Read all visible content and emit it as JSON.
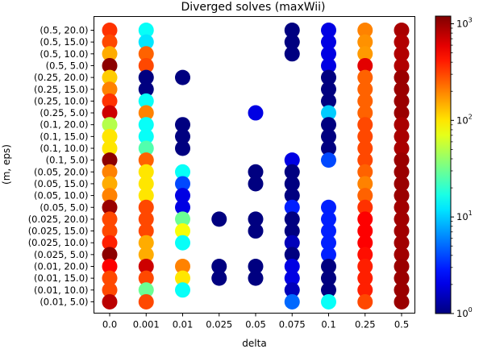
{
  "chart_data": {
    "type": "scatter",
    "title": "Diverged solves (maxWii)",
    "xlabel": "delta",
    "ylabel": "(m, eps)",
    "x_categories": [
      "0.0",
      "0.001",
      "0.01",
      "0.025",
      "0.05",
      "0.075",
      "0.1",
      "0.25",
      "0.5"
    ],
    "y_categories": [
      "(0.5, 20.0)",
      "(0.5, 15.0)",
      "(0.5, 10.0)",
      "(0.5, 5.0)",
      "(0.25, 20.0)",
      "(0.25, 15.0)",
      "(0.25, 10.0)",
      "(0.25, 5.0)",
      "(0.1, 20.0)",
      "(0.1, 15.0)",
      "(0.1, 10.0)",
      "(0.1, 5.0)",
      "(0.05, 20.0)",
      "(0.05, 15.0)",
      "(0.05, 10.0)",
      "(0.05, 5.0)",
      "(0.025, 20.0)",
      "(0.025, 15.0)",
      "(0.025, 10.0)",
      "(0.025, 5.0)",
      "(0.01, 20.0)",
      "(0.01, 15.0)",
      "(0.01, 10.0)",
      "(0.01, 5.0)"
    ],
    "color_scale": "log",
    "colormap": "jet",
    "color_range": [
      1,
      1200
    ],
    "colorbar_ticks": [
      {
        "value": 1,
        "base": "10",
        "exp": "0"
      },
      {
        "value": 10,
        "base": "10",
        "exp": "1"
      },
      {
        "value": 100,
        "base": "10",
        "exp": "2"
      },
      {
        "value": 1000,
        "base": "10",
        "exp": "3"
      }
    ],
    "grid": false,
    "legend": "none",
    "values": [
      [
        350,
        15,
        null,
        null,
        null,
        1,
        2,
        200,
        900
      ],
      [
        300,
        12,
        null,
        null,
        null,
        1,
        2,
        180,
        850
      ],
      [
        150,
        250,
        null,
        null,
        null,
        1,
        2,
        170,
        850
      ],
      [
        1100,
        300,
        null,
        null,
        null,
        null,
        2,
        600,
        850
      ],
      [
        120,
        1,
        1,
        null,
        null,
        null,
        1,
        250,
        1000
      ],
      [
        200,
        1,
        null,
        null,
        null,
        null,
        1,
        250,
        1000
      ],
      [
        350,
        15,
        null,
        null,
        null,
        null,
        1,
        250,
        1000
      ],
      [
        700,
        200,
        null,
        null,
        2,
        null,
        10,
        250,
        1000
      ],
      [
        50,
        15,
        1,
        null,
        null,
        null,
        1,
        300,
        900
      ],
      [
        100,
        15,
        1,
        null,
        null,
        null,
        1,
        300,
        900
      ],
      [
        100,
        25,
        1,
        null,
        null,
        null,
        1,
        300,
        900
      ],
      [
        1100,
        250,
        null,
        null,
        null,
        2,
        4,
        300,
        1000
      ],
      [
        200,
        100,
        15,
        null,
        1,
        1,
        null,
        250,
        1000
      ],
      [
        150,
        100,
        4,
        null,
        1,
        1,
        null,
        200,
        1000
      ],
      [
        200,
        100,
        2,
        null,
        null,
        1,
        null,
        250,
        1000
      ],
      [
        1000,
        300,
        2,
        null,
        null,
        3,
        3,
        350,
        950
      ],
      [
        300,
        300,
        30,
        1,
        1,
        1,
        3,
        500,
        950
      ],
      [
        300,
        300,
        80,
        null,
        1,
        1,
        3,
        500,
        950
      ],
      [
        400,
        150,
        15,
        null,
        null,
        1.5,
        3,
        500,
        950
      ],
      [
        1100,
        150,
        null,
        null,
        null,
        1,
        3,
        450,
        950
      ],
      [
        500,
        700,
        200,
        1,
        1,
        2,
        1,
        400,
        1000
      ],
      [
        300,
        300,
        100,
        1,
        1,
        2,
        1,
        400,
        1000
      ],
      [
        300,
        30,
        15,
        null,
        null,
        1.5,
        1,
        400,
        1000
      ],
      [
        800,
        300,
        null,
        null,
        null,
        5,
        15,
        300,
        1000
      ]
    ]
  }
}
